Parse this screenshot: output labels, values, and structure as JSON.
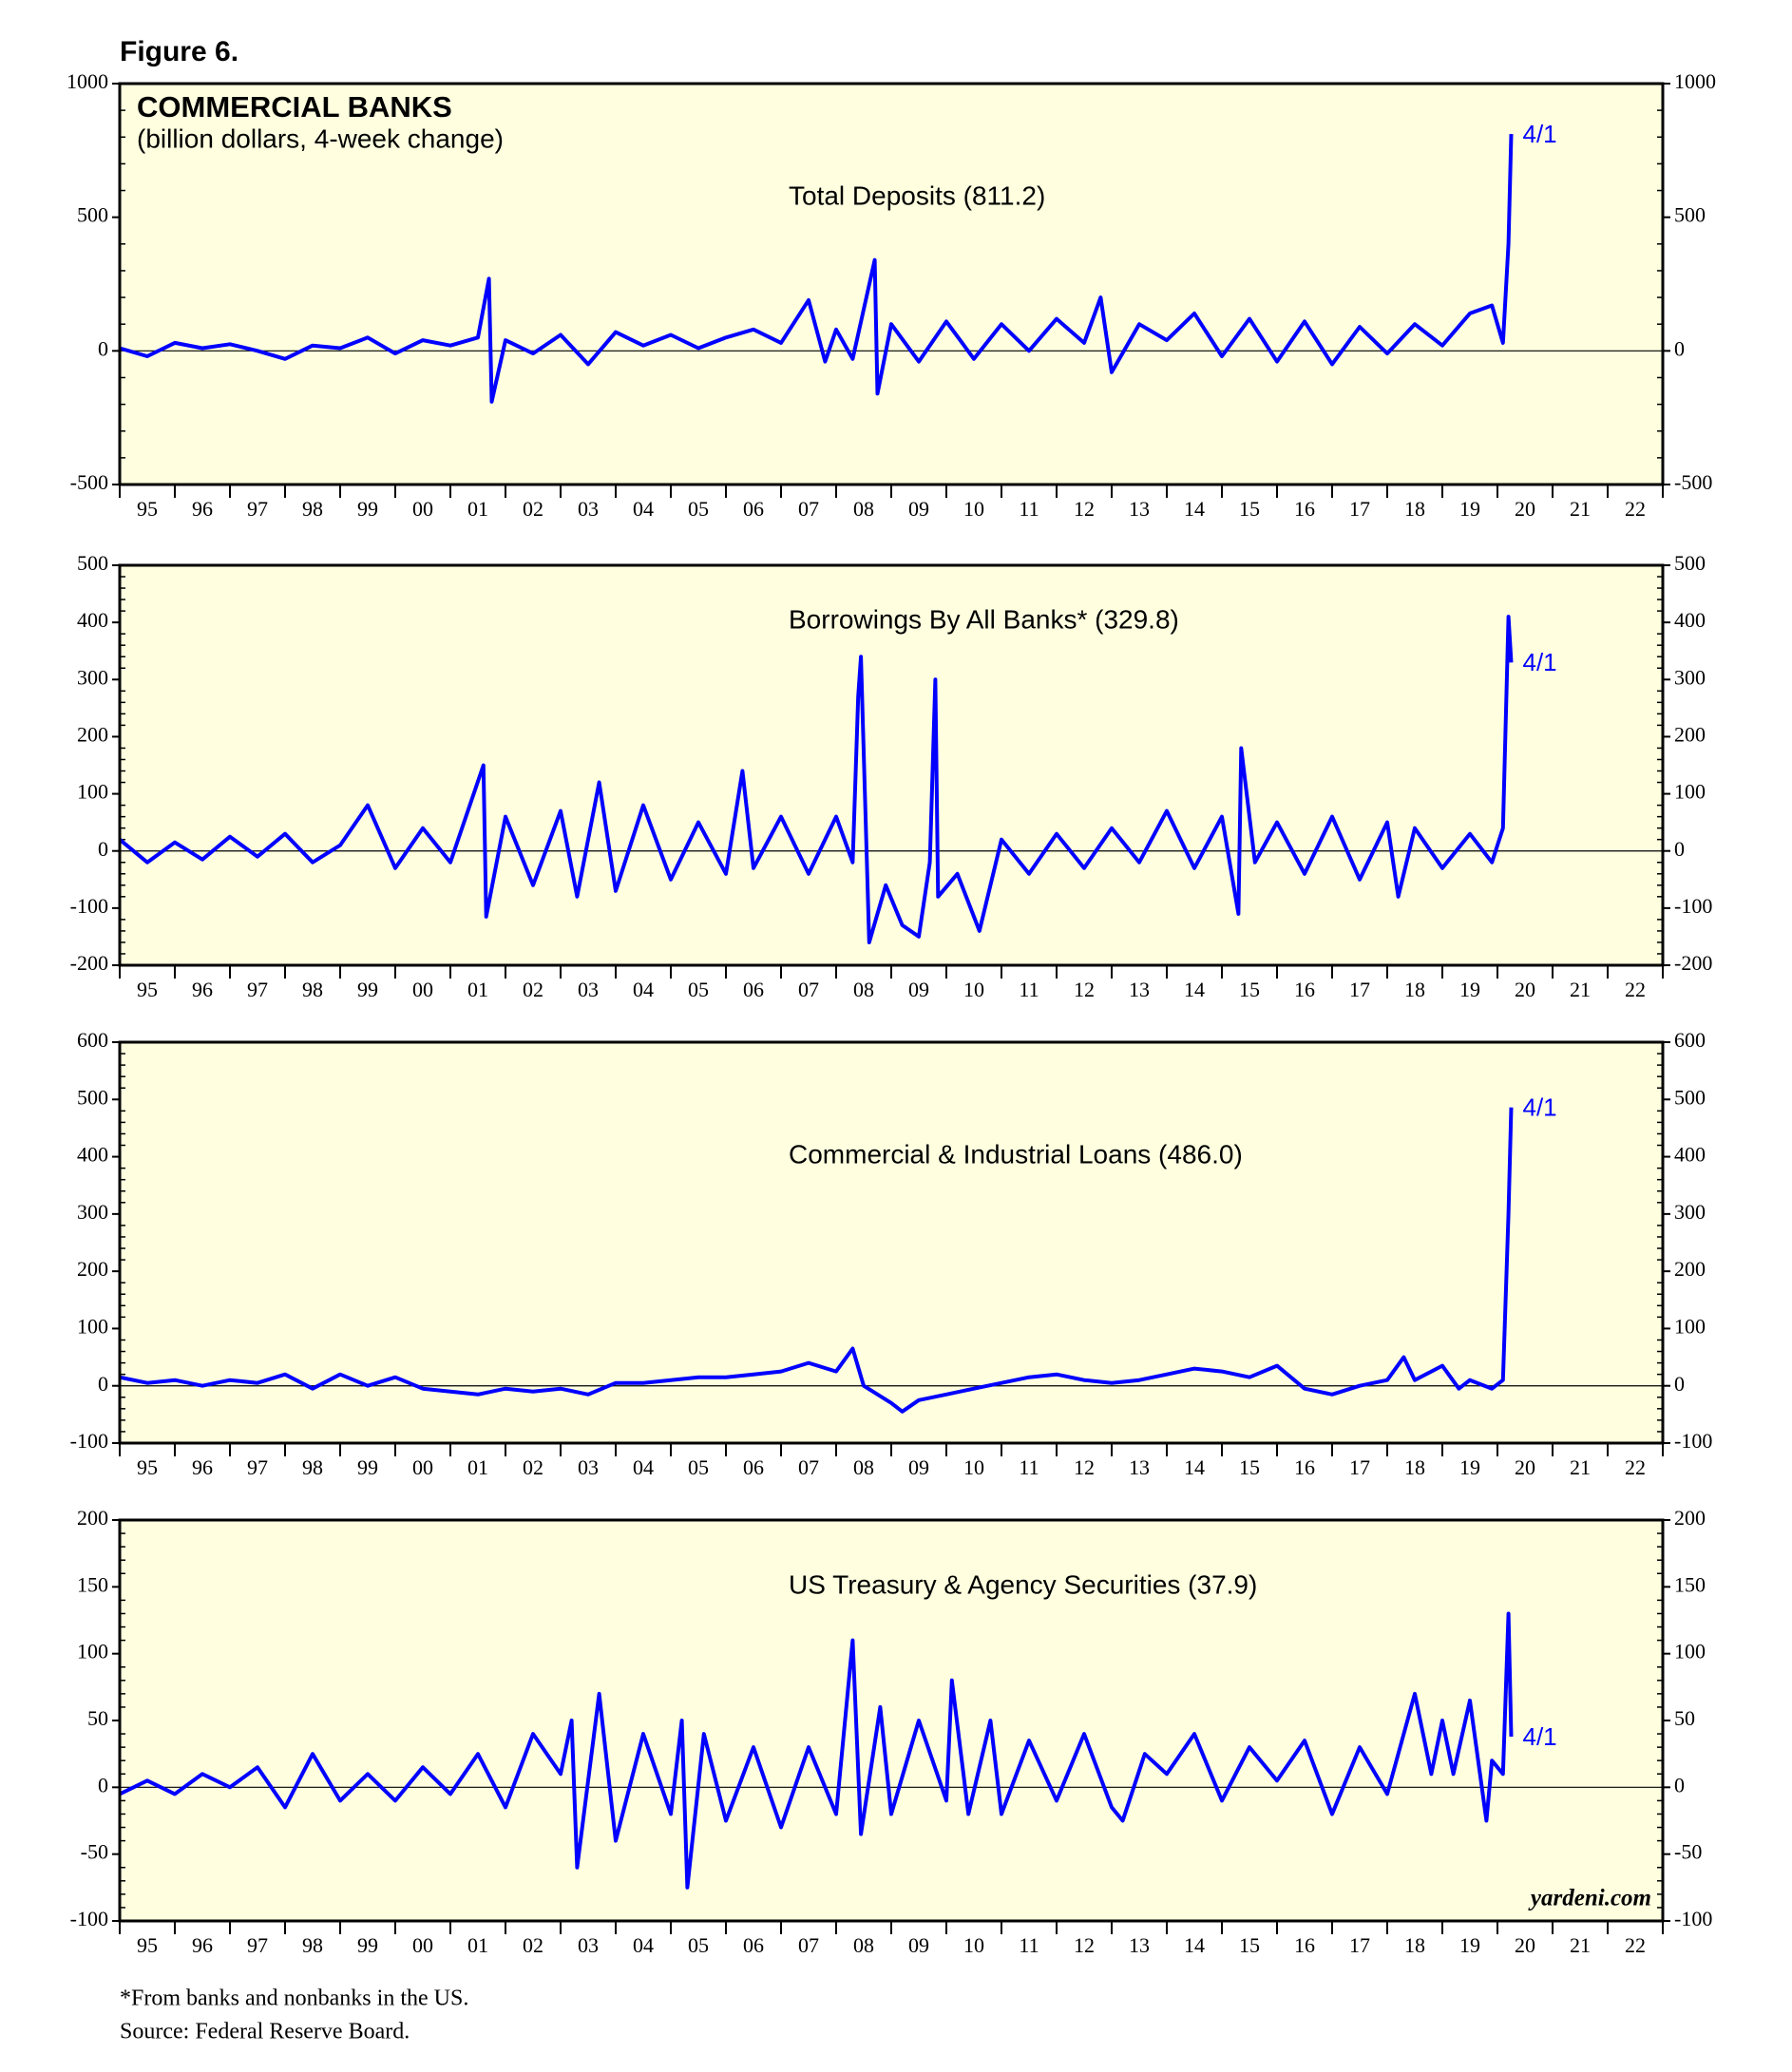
{
  "figure_label": "Figure 6.",
  "chart_data": [
    {
      "type": "line",
      "title": "COMMERCIAL BANKS",
      "subtitle": "(billion dollars, 4-week change)",
      "label": "Total Deposits (811.2)",
      "end_label": "4/1",
      "color": "#0000ff",
      "x": [
        1995.0,
        1995.5,
        1996.0,
        1996.5,
        1997.0,
        1997.5,
        1998.0,
        1998.5,
        1999.0,
        1999.5,
        2000.0,
        2000.5,
        2001.0,
        2001.5,
        2001.7,
        2001.75,
        2002.0,
        2002.5,
        2003.0,
        2003.5,
        2004.0,
        2004.5,
        2005.0,
        2005.5,
        2006.0,
        2006.5,
        2007.0,
        2007.5,
        2007.8,
        2008.0,
        2008.3,
        2008.7,
        2008.75,
        2009.0,
        2009.5,
        2010.0,
        2010.5,
        2011.0,
        2011.5,
        2012.0,
        2012.5,
        2012.8,
        2013.0,
        2013.5,
        2014.0,
        2014.5,
        2015.0,
        2015.5,
        2016.0,
        2016.5,
        2017.0,
        2017.5,
        2018.0,
        2018.5,
        2019.0,
        2019.5,
        2019.9,
        2020.1,
        2020.2,
        2020.25
      ],
      "values": [
        10,
        -20,
        30,
        10,
        25,
        0,
        -30,
        20,
        10,
        50,
        -10,
        40,
        20,
        50,
        270,
        -190,
        40,
        -10,
        60,
        -50,
        70,
        20,
        60,
        10,
        50,
        80,
        30,
        190,
        -40,
        80,
        -30,
        340,
        -160,
        100,
        -40,
        110,
        -30,
        100,
        0,
        120,
        30,
        200,
        -80,
        100,
        40,
        140,
        -20,
        120,
        -40,
        110,
        -50,
        90,
        -10,
        100,
        20,
        140,
        170,
        30,
        400,
        811.2
      ],
      "xlim": [
        1995,
        2023
      ],
      "ylim": [
        -500,
        1000
      ],
      "yticks": [
        -500,
        0,
        500,
        1000
      ]
    },
    {
      "type": "line",
      "label": "Borrowings By All Banks* (329.8)",
      "end_label": "4/1",
      "color": "#0000ff",
      "x": [
        1995.0,
        1995.5,
        1996.0,
        1996.5,
        1997.0,
        1997.5,
        1998.0,
        1998.5,
        1999.0,
        1999.5,
        2000.0,
        2000.5,
        2001.0,
        2001.6,
        2001.65,
        2002.0,
        2002.5,
        2003.0,
        2003.3,
        2003.7,
        2004.0,
        2004.5,
        2005.0,
        2005.5,
        2006.0,
        2006.3,
        2006.5,
        2007.0,
        2007.5,
        2008.0,
        2008.3,
        2008.4,
        2008.45,
        2008.6,
        2008.9,
        2009.2,
        2009.5,
        2009.7,
        2009.8,
        2009.85,
        2010.2,
        2010.6,
        2011.0,
        2011.5,
        2012.0,
        2012.5,
        2013.0,
        2013.5,
        2014.0,
        2014.5,
        2015.0,
        2015.3,
        2015.35,
        2015.6,
        2016.0,
        2016.5,
        2017.0,
        2017.5,
        2018.0,
        2018.2,
        2018.5,
        2019.0,
        2019.5,
        2019.9,
        2020.1,
        2020.2,
        2020.25
      ],
      "values": [
        20,
        -20,
        15,
        -15,
        25,
        -10,
        30,
        -20,
        10,
        80,
        -30,
        40,
        -20,
        150,
        -115,
        60,
        -60,
        70,
        -80,
        120,
        -70,
        80,
        -50,
        50,
        -40,
        140,
        -30,
        60,
        -40,
        60,
        -20,
        270,
        340,
        -160,
        -60,
        -130,
        -150,
        -20,
        300,
        -80,
        -40,
        -140,
        20,
        -40,
        30,
        -30,
        40,
        -20,
        70,
        -30,
        60,
        -110,
        180,
        -20,
        50,
        -40,
        60,
        -50,
        50,
        -80,
        40,
        -30,
        30,
        -20,
        40,
        410,
        329.8
      ],
      "xlim": [
        1995,
        2023
      ],
      "ylim": [
        -200,
        500
      ],
      "yticks": [
        -200,
        -100,
        0,
        100,
        200,
        300,
        400,
        500
      ]
    },
    {
      "type": "line",
      "label": "Commercial & Industrial Loans (486.0)",
      "end_label": "4/1",
      "color": "#0000ff",
      "x": [
        1995.0,
        1995.5,
        1996.0,
        1996.5,
        1997.0,
        1997.5,
        1998.0,
        1998.5,
        1999.0,
        1999.5,
        2000.0,
        2000.5,
        2001.0,
        2001.5,
        2002.0,
        2002.5,
        2003.0,
        2003.5,
        2004.0,
        2004.5,
        2005.0,
        2005.5,
        2006.0,
        2006.5,
        2007.0,
        2007.5,
        2008.0,
        2008.3,
        2008.5,
        2009.0,
        2009.2,
        2009.5,
        2010.0,
        2010.5,
        2011.0,
        2011.5,
        2012.0,
        2012.5,
        2013.0,
        2013.5,
        2014.0,
        2014.5,
        2015.0,
        2015.5,
        2016.0,
        2016.5,
        2017.0,
        2017.5,
        2018.0,
        2018.3,
        2018.5,
        2019.0,
        2019.3,
        2019.5,
        2019.9,
        2020.1,
        2020.2,
        2020.25
      ],
      "values": [
        15,
        5,
        10,
        0,
        10,
        5,
        20,
        -5,
        20,
        0,
        15,
        -5,
        -10,
        -15,
        -5,
        -10,
        -5,
        -15,
        5,
        5,
        10,
        15,
        15,
        20,
        25,
        40,
        25,
        65,
        0,
        -30,
        -45,
        -25,
        -15,
        -5,
        5,
        15,
        20,
        10,
        5,
        10,
        20,
        30,
        25,
        15,
        35,
        -5,
        -15,
        0,
        10,
        50,
        10,
        35,
        -5,
        10,
        -5,
        10,
        300,
        486.0
      ],
      "xlim": [
        1995,
        2023
      ],
      "ylim": [
        -100,
        600
      ],
      "yticks": [
        -100,
        0,
        100,
        200,
        300,
        400,
        500,
        600
      ]
    },
    {
      "type": "line",
      "label": "US Treasury & Agency Securities (37.9)",
      "end_label": "4/1",
      "color": "#0000ff",
      "x": [
        1995.0,
        1995.5,
        1996.0,
        1996.5,
        1997.0,
        1997.5,
        1998.0,
        1998.5,
        1999.0,
        1999.5,
        2000.0,
        2000.5,
        2001.0,
        2001.5,
        2002.0,
        2002.5,
        2003.0,
        2003.2,
        2003.3,
        2003.7,
        2004.0,
        2004.5,
        2005.0,
        2005.2,
        2005.3,
        2005.6,
        2006.0,
        2006.5,
        2007.0,
        2007.5,
        2008.0,
        2008.3,
        2008.45,
        2008.8,
        2009.0,
        2009.5,
        2010.0,
        2010.1,
        2010.4,
        2010.8,
        2011.0,
        2011.5,
        2012.0,
        2012.5,
        2013.0,
        2013.2,
        2013.6,
        2014.0,
        2014.5,
        2015.0,
        2015.5,
        2016.0,
        2016.5,
        2017.0,
        2017.5,
        2018.0,
        2018.5,
        2018.8,
        2019.0,
        2019.2,
        2019.5,
        2019.8,
        2019.9,
        2020.1,
        2020.2,
        2020.25
      ],
      "values": [
        -5,
        5,
        -5,
        10,
        0,
        15,
        -15,
        25,
        -10,
        10,
        -10,
        15,
        -5,
        25,
        -15,
        40,
        10,
        50,
        -60,
        70,
        -40,
        40,
        -20,
        50,
        -75,
        40,
        -25,
        30,
        -30,
        30,
        -20,
        110,
        -35,
        60,
        -20,
        50,
        -10,
        80,
        -20,
        50,
        -20,
        35,
        -10,
        40,
        -15,
        -25,
        25,
        10,
        40,
        -10,
        30,
        5,
        35,
        -20,
        30,
        -5,
        70,
        10,
        50,
        10,
        65,
        -25,
        20,
        10,
        130,
        37.9
      ],
      "xlim": [
        1995,
        2023
      ],
      "ylim": [
        -100,
        200
      ],
      "yticks": [
        -100,
        -50,
        0,
        50,
        100,
        150,
        200
      ]
    }
  ],
  "xticks": [
    {
      "value": 1995.5,
      "label": "95"
    },
    {
      "value": 1996.5,
      "label": "96"
    },
    {
      "value": 1997.5,
      "label": "97"
    },
    {
      "value": 1998.5,
      "label": "98"
    },
    {
      "value": 1999.5,
      "label": "99"
    },
    {
      "value": 2000.5,
      "label": "00"
    },
    {
      "value": 2001.5,
      "label": "01"
    },
    {
      "value": 2002.5,
      "label": "02"
    },
    {
      "value": 2003.5,
      "label": "03"
    },
    {
      "value": 2004.5,
      "label": "04"
    },
    {
      "value": 2005.5,
      "label": "05"
    },
    {
      "value": 2006.5,
      "label": "06"
    },
    {
      "value": 2007.5,
      "label": "07"
    },
    {
      "value": 2008.5,
      "label": "08"
    },
    {
      "value": 2009.5,
      "label": "09"
    },
    {
      "value": 2010.5,
      "label": "10"
    },
    {
      "value": 2011.5,
      "label": "11"
    },
    {
      "value": 2012.5,
      "label": "12"
    },
    {
      "value": 2013.5,
      "label": "13"
    },
    {
      "value": 2014.5,
      "label": "14"
    },
    {
      "value": 2015.5,
      "label": "15"
    },
    {
      "value": 2016.5,
      "label": "16"
    },
    {
      "value": 2017.5,
      "label": "17"
    },
    {
      "value": 2018.5,
      "label": "18"
    },
    {
      "value": 2019.5,
      "label": "19"
    },
    {
      "value": 2020.5,
      "label": "20"
    },
    {
      "value": 2021.5,
      "label": "21"
    },
    {
      "value": 2022.5,
      "label": "22"
    }
  ],
  "watermark": "yardeni.com",
  "footnotes": [
    "*From banks and nonbanks in the US.",
    "Source: Federal Reserve Board."
  ]
}
